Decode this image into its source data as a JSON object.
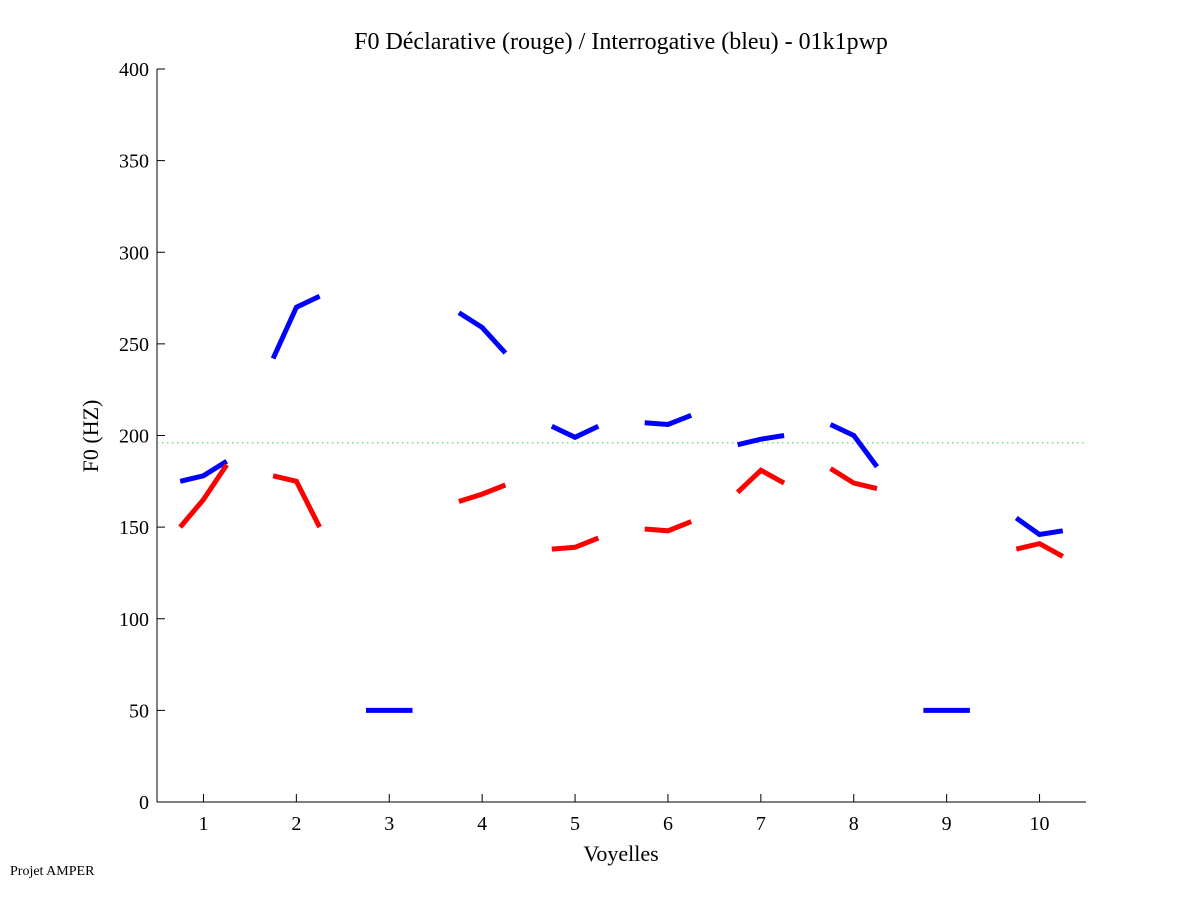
{
  "chart_data": {
    "type": "line",
    "title": "F0 Déclarative (rouge) / Interrogative (bleu) - 01k1pwp",
    "xlabel": "Voyelles",
    "ylabel": "F0 (HZ)",
    "xlim": [
      0.5,
      10.5
    ],
    "ylim": [
      0,
      400
    ],
    "xticks": [
      "1",
      "2",
      "3",
      "4",
      "5",
      "6",
      "7",
      "8",
      "9",
      "10"
    ],
    "yticks": [
      "0",
      "50",
      "100",
      "150",
      "200",
      "250",
      "300",
      "350",
      "400"
    ],
    "grid": false,
    "reference_line": {
      "y": 196,
      "color": "#33cc33",
      "style": "dotted"
    },
    "series": [
      {
        "name": "Interrogative (bleu)",
        "color": "#0000ff",
        "segments": [
          {
            "vowel": 1,
            "values": [
              175,
              178,
              186
            ]
          },
          {
            "vowel": 2,
            "values": [
              242,
              270,
              276
            ]
          },
          {
            "vowel": 3,
            "values": [
              50,
              50,
              50
            ]
          },
          {
            "vowel": 4,
            "values": [
              267,
              259,
              245
            ]
          },
          {
            "vowel": 5,
            "values": [
              205,
              199,
              205
            ]
          },
          {
            "vowel": 6,
            "values": [
              207,
              206,
              211
            ]
          },
          {
            "vowel": 7,
            "values": [
              195,
              198,
              200
            ]
          },
          {
            "vowel": 8,
            "values": [
              206,
              200,
              183
            ]
          },
          {
            "vowel": 9,
            "values": [
              50,
              50,
              50
            ]
          },
          {
            "vowel": 10,
            "values": [
              155,
              146,
              148
            ]
          }
        ]
      },
      {
        "name": "Déclarative (rouge)",
        "color": "#ff0000",
        "segments": [
          {
            "vowel": 1,
            "values": [
              150,
              165,
              184
            ]
          },
          {
            "vowel": 2,
            "values": [
              178,
              175,
              150
            ]
          },
          {
            "vowel": 4,
            "values": [
              164,
              168,
              173
            ]
          },
          {
            "vowel": 5,
            "values": [
              138,
              139,
              144
            ]
          },
          {
            "vowel": 6,
            "values": [
              149,
              148,
              153
            ]
          },
          {
            "vowel": 7,
            "values": [
              169,
              181,
              174
            ]
          },
          {
            "vowel": 8,
            "values": [
              182,
              174,
              171
            ]
          },
          {
            "vowel": 10,
            "values": [
              138,
              141,
              134
            ]
          }
        ]
      }
    ]
  },
  "footer": "Projet AMPER"
}
